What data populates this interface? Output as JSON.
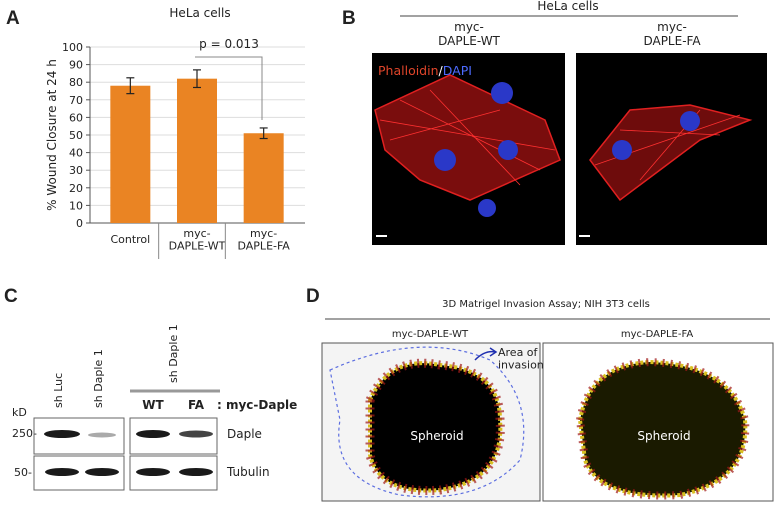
{
  "chart_data": {
    "type": "bar",
    "title": "HeLa cells",
    "y_label": "% Wound Closure at 24 h",
    "categories": [
      "Control",
      "myc-\nDAPLE-WT",
      "myc-\nDAPLE-FA"
    ],
    "values": [
      78,
      82,
      51
    ],
    "errors": [
      4.5,
      5,
      3
    ],
    "color": "#ea8423",
    "ylim": [
      0,
      100
    ],
    "yticks": [
      0,
      10,
      20,
      30,
      40,
      50,
      60,
      70,
      80,
      90,
      100
    ],
    "grid": true,
    "annotation": "p = 0.013"
  },
  "panel_labels": [
    "A",
    "B",
    "C",
    "D"
  ],
  "panel_b": {
    "title": "HeLa cells",
    "columns": [
      "myc-\nDAPLE-WT",
      "myc-\nDAPLE-FA"
    ],
    "stain_labels": [
      "Phalloidin",
      "/",
      "DAPI"
    ]
  },
  "panel_c": {
    "lanes": [
      "sh Luc",
      "sh Daple 1"
    ],
    "group_label": "sh Daple 1",
    "constructs": [
      "WT",
      "FA"
    ],
    "construct_label": ": myc-Daple",
    "unit": "kD",
    "markers": [
      "250-",
      "50-"
    ],
    "proteins": [
      "Daple",
      "Tubulin"
    ]
  },
  "panel_d": {
    "title": "3D Matrigel Invasion Assay; NIH 3T3 cells",
    "columns": [
      "myc-DAPLE-WT",
      "myc-DAPLE-FA"
    ],
    "spheroid_labels": [
      "Spheroid",
      "Spheroid"
    ],
    "annotation": "Area of\ninvasion"
  }
}
